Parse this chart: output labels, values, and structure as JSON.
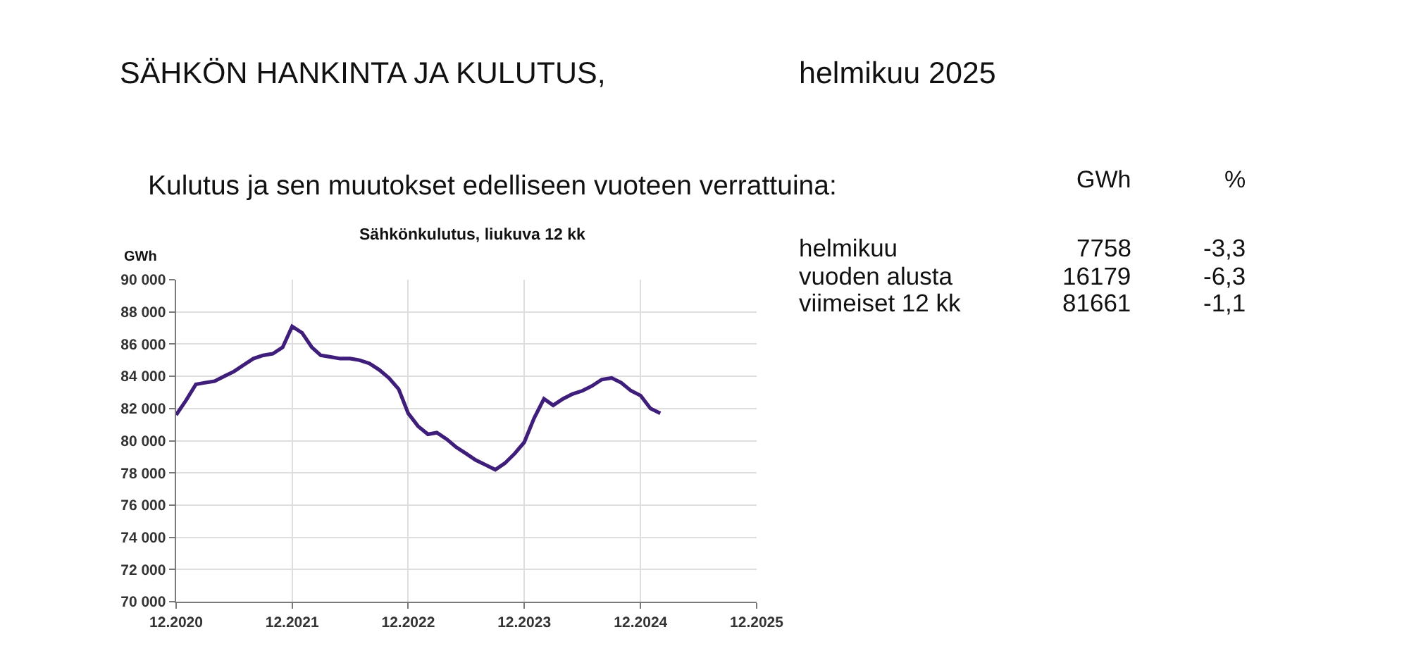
{
  "chart_data": [
    {
      "type": "other",
      "title": "SÄHKÖN HANKINTA JA KULUTUS,",
      "subtitle": "helmikuu 2025",
      "annotations": [
        "Kulutus ja sen muutokset edelliseen vuoteen verrattuina:",
        "GWh",
        "%",
        "helmikuu",
        "7758",
        "-3,3",
        "vuoden alusta",
        "16179",
        "-6,3",
        "viimeiset 12 kk",
        "81661",
        "-1,1"
      ]
    },
    {
      "type": "line",
      "title": "Sähkönkulutus, liukuva 12 kk",
      "ylabel": "GWh",
      "x": [
        "2020-12",
        "2021-01",
        "2021-02",
        "2021-03",
        "2021-04",
        "2021-05",
        "2021-06",
        "2021-07",
        "2021-08",
        "2021-09",
        "2021-10",
        "2021-11",
        "2021-12",
        "2022-01",
        "2022-02",
        "2022-03",
        "2022-04",
        "2022-05",
        "2022-06",
        "2022-07",
        "2022-08",
        "2022-09",
        "2022-10",
        "2022-11",
        "2022-12",
        "2023-01",
        "2023-02",
        "2023-03",
        "2023-04",
        "2023-05",
        "2023-06",
        "2023-07",
        "2023-08",
        "2023-09",
        "2023-10",
        "2023-11",
        "2023-12",
        "2024-01",
        "2024-02",
        "2024-03",
        "2024-04",
        "2024-05",
        "2024-06",
        "2024-07",
        "2024-08",
        "2024-09",
        "2024-10",
        "2024-11",
        "2024-12",
        "2025-01",
        "2025-02"
      ],
      "series": [
        {
          "color": "#3f1d7a",
          "values": [
            81600,
            82500,
            83500,
            83600,
            83700,
            84000,
            84300,
            84700,
            85100,
            85300,
            85400,
            85800,
            87100,
            86700,
            85800,
            85300,
            85200,
            85100,
            85100,
            85000,
            84800,
            84400,
            83900,
            83200,
            81700,
            80900,
            80400,
            80500,
            80100,
            79600,
            79200,
            78800,
            78500,
            78200,
            78600,
            79200,
            79900,
            81400,
            82600,
            82200,
            82600,
            82900,
            83100,
            83400,
            83800,
            83900,
            83600,
            83100,
            82800,
            82000,
            81700
          ]
        }
      ],
      "xlim": [
        "2020-12",
        "2025-12"
      ],
      "xticks": [
        {
          "value": "2020-12",
          "label": "12.2020"
        },
        {
          "value": "2021-12",
          "label": "12.2021"
        },
        {
          "value": "2022-12",
          "label": "12.2022"
        },
        {
          "value": "2023-12",
          "label": "12.2023"
        },
        {
          "value": "2024-12",
          "label": "12.2024"
        },
        {
          "value": "2025-12",
          "label": "12.2025"
        }
      ],
      "ylim": [
        70000,
        90000
      ],
      "yticks": [
        {
          "value": 70000,
          "label": "70 000"
        },
        {
          "value": 72000,
          "label": "72 000"
        },
        {
          "value": 74000,
          "label": "74 000"
        },
        {
          "value": 76000,
          "label": "76 000"
        },
        {
          "value": 78000,
          "label": "78 000"
        },
        {
          "value": 80000,
          "label": "80 000"
        },
        {
          "value": 82000,
          "label": "82 000"
        },
        {
          "value": 84000,
          "label": "84 000"
        },
        {
          "value": 86000,
          "label": "86 000"
        },
        {
          "value": 88000,
          "label": "88 000"
        },
        {
          "value": 90000,
          "label": "90 000"
        }
      ],
      "grid": true,
      "line_style": "solid"
    }
  ]
}
